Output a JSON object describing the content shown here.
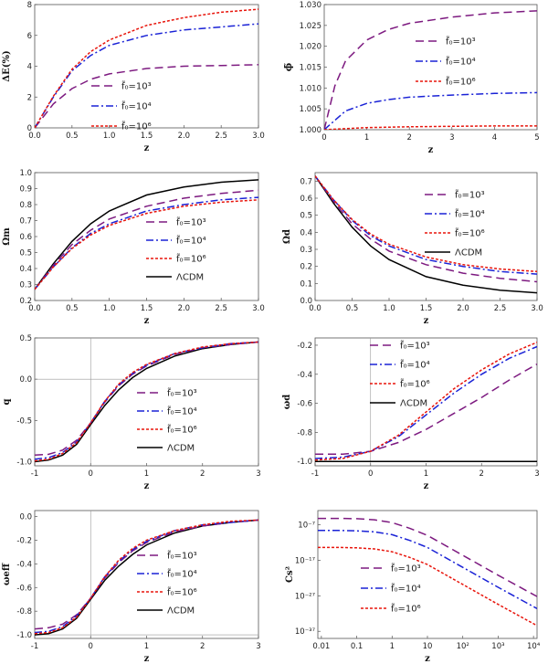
{
  "legend_styles": {
    "f3": {
      "color": "#7d1a80",
      "dash": "9,5"
    },
    "f4": {
      "color": "#1a22d6",
      "dash": "8,3,2,3"
    },
    "f6": {
      "color": "#e8150c",
      "dash": "3,2"
    },
    "lcdm": {
      "color": "#000000",
      "dash": ""
    }
  },
  "chart_data": [
    {
      "id": "p1",
      "type": "line",
      "ylabel": "ΔE(%)",
      "xlabel": "z",
      "xlim": [
        0,
        3
      ],
      "ylim": [
        0,
        8
      ],
      "xticks": [
        "0.0",
        "0.5",
        "1.0",
        "1.5",
        "2.0",
        "2.5",
        "3.0"
      ],
      "yticks": [
        "0",
        "2",
        "4",
        "6",
        "8"
      ],
      "legend": [
        {
          "key": "f3",
          "label": "f̃₀=10³"
        },
        {
          "key": "f4",
          "label": "f̃₀=10⁴"
        },
        {
          "key": "f6",
          "label": "f̃₀=10⁶"
        }
      ],
      "series": [
        {
          "key": "f3",
          "x": [
            0,
            0.25,
            0.5,
            0.75,
            1,
            1.5,
            2,
            2.5,
            3
          ],
          "y": [
            0,
            1.55,
            2.55,
            3.15,
            3.5,
            3.85,
            4.0,
            4.05,
            4.1
          ]
        },
        {
          "key": "f4",
          "x": [
            0,
            0.25,
            0.5,
            0.75,
            1,
            1.5,
            2,
            2.5,
            3
          ],
          "y": [
            0,
            2.0,
            3.7,
            4.7,
            5.35,
            6.0,
            6.35,
            6.55,
            6.75
          ]
        },
        {
          "key": "f6",
          "x": [
            0,
            0.25,
            0.5,
            0.75,
            1,
            1.5,
            2,
            2.5,
            3
          ],
          "y": [
            0,
            2.05,
            3.8,
            4.95,
            5.7,
            6.65,
            7.15,
            7.5,
            7.7
          ]
        }
      ]
    },
    {
      "id": "p2",
      "type": "line",
      "ylabel": "ϕ̃",
      "xlabel": "z",
      "xlim": [
        0,
        5
      ],
      "ylim": [
        1.0,
        1.03
      ],
      "xticks": [
        "0",
        "1",
        "2",
        "3",
        "4",
        "5"
      ],
      "yticks": [
        "1.000",
        "1.005",
        "1.010",
        "1.015",
        "1.020",
        "1.025",
        "1.030"
      ],
      "legend": [
        {
          "key": "f3",
          "label": "f̃₀=10³"
        },
        {
          "key": "f4",
          "label": "f̃₀=10⁴"
        },
        {
          "key": "f6",
          "label": "f̃₀=10⁶"
        }
      ],
      "series": [
        {
          "key": "f3",
          "x": [
            0,
            0.25,
            0.5,
            1,
            1.5,
            2,
            3,
            4,
            5
          ],
          "y": [
            1.0,
            1.0105,
            1.0165,
            1.0215,
            1.024,
            1.0255,
            1.027,
            1.028,
            1.0285
          ]
        },
        {
          "key": "f4",
          "x": [
            0,
            0.5,
            1,
            1.5,
            2,
            3,
            4,
            5
          ],
          "y": [
            1.0,
            1.0045,
            1.0063,
            1.0072,
            1.0078,
            1.0083,
            1.0087,
            1.0089
          ]
        },
        {
          "key": "f6",
          "x": [
            0,
            1,
            2,
            3,
            4,
            5
          ],
          "y": [
            1.0,
            1.0005,
            1.0007,
            1.0008,
            1.0009,
            1.0009
          ]
        }
      ]
    },
    {
      "id": "p3",
      "type": "line",
      "ylabel": "Ωm",
      "xlabel": "z",
      "xlim": [
        0,
        3
      ],
      "ylim": [
        0.2,
        1.0
      ],
      "xticks": [
        "0.0",
        "0.5",
        "1.0",
        "1.5",
        "2.0",
        "2.5",
        "3.0"
      ],
      "yticks": [
        "0.2",
        "0.3",
        "0.4",
        "0.5",
        "0.6",
        "0.7",
        "0.8",
        "0.9",
        "1.0"
      ],
      "legend": [
        {
          "key": "f3",
          "label": "f̃₀=10³"
        },
        {
          "key": "f4",
          "label": "f̃₀=10⁴"
        },
        {
          "key": "f6",
          "label": "f̃₀=10⁶"
        },
        {
          "key": "lcdm",
          "label": "ΛCDM"
        }
      ],
      "series": [
        {
          "key": "lcdm",
          "x": [
            0,
            0.25,
            0.5,
            0.75,
            1,
            1.5,
            2,
            2.5,
            3
          ],
          "y": [
            0.27,
            0.43,
            0.57,
            0.68,
            0.76,
            0.86,
            0.91,
            0.94,
            0.955
          ]
        },
        {
          "key": "f3",
          "x": [
            0,
            0.25,
            0.5,
            0.75,
            1,
            1.5,
            2,
            2.5,
            3
          ],
          "y": [
            0.27,
            0.42,
            0.55,
            0.64,
            0.71,
            0.79,
            0.84,
            0.87,
            0.89
          ]
        },
        {
          "key": "f4",
          "x": [
            0,
            0.25,
            0.5,
            0.75,
            1,
            1.5,
            2,
            2.5,
            3
          ],
          "y": [
            0.27,
            0.41,
            0.53,
            0.62,
            0.68,
            0.76,
            0.8,
            0.83,
            0.845
          ]
        },
        {
          "key": "f6",
          "x": [
            0,
            0.25,
            0.5,
            0.75,
            1,
            1.5,
            2,
            2.5,
            3
          ],
          "y": [
            0.27,
            0.41,
            0.525,
            0.61,
            0.67,
            0.745,
            0.79,
            0.815,
            0.83
          ]
        }
      ]
    },
    {
      "id": "p4",
      "type": "line",
      "ylabel": "Ωd",
      "xlabel": "z",
      "xlim": [
        0,
        3
      ],
      "ylim": [
        0.0,
        0.75
      ],
      "xticks": [
        "0.0",
        "0.5",
        "1.0",
        "1.5",
        "2.0",
        "2.5",
        "3.0"
      ],
      "yticks": [
        "0.0",
        "0.1",
        "0.2",
        "0.3",
        "0.4",
        "0.5",
        "0.6",
        "0.7"
      ],
      "legend": [
        {
          "key": "f3",
          "label": "f̃₀=10³"
        },
        {
          "key": "f4",
          "label": "f̃₀=10⁴"
        },
        {
          "key": "f6",
          "label": "f̃₀=10⁶"
        },
        {
          "key": "lcdm",
          "label": "ΛCDM"
        }
      ],
      "series": [
        {
          "key": "lcdm",
          "x": [
            0,
            0.25,
            0.5,
            0.75,
            1,
            1.5,
            2,
            2.5,
            3
          ],
          "y": [
            0.73,
            0.57,
            0.43,
            0.32,
            0.24,
            0.14,
            0.09,
            0.06,
            0.045
          ]
        },
        {
          "key": "f3",
          "x": [
            0,
            0.25,
            0.5,
            0.75,
            1,
            1.5,
            2,
            2.5,
            3
          ],
          "y": [
            0.73,
            0.58,
            0.45,
            0.36,
            0.29,
            0.21,
            0.16,
            0.13,
            0.11
          ]
        },
        {
          "key": "f4",
          "x": [
            0,
            0.25,
            0.5,
            0.75,
            1,
            1.5,
            2,
            2.5,
            3
          ],
          "y": [
            0.73,
            0.59,
            0.47,
            0.38,
            0.32,
            0.24,
            0.2,
            0.17,
            0.155
          ]
        },
        {
          "key": "f6",
          "x": [
            0,
            0.25,
            0.5,
            0.75,
            1,
            1.5,
            2,
            2.5,
            3
          ],
          "y": [
            0.73,
            0.59,
            0.475,
            0.39,
            0.33,
            0.255,
            0.21,
            0.185,
            0.17
          ]
        }
      ]
    },
    {
      "id": "p5",
      "type": "line",
      "ylabel": "q",
      "xlabel": "z",
      "xlim": [
        -1,
        3
      ],
      "ylim": [
        -1.05,
        0.5
      ],
      "xticks": [
        "-1",
        "0",
        "1",
        "2",
        "3"
      ],
      "yticks": [
        "-1.0",
        "-0.5",
        "0.0",
        "0.5"
      ],
      "refX": 0,
      "refY": 0,
      "legend": [
        {
          "key": "f3",
          "label": "f̃₀=10³"
        },
        {
          "key": "f4",
          "label": "f̃₀=10⁴"
        },
        {
          "key": "f6",
          "label": "f̃₀=10⁶"
        },
        {
          "key": "lcdm",
          "label": "ΛCDM"
        }
      ],
      "series": [
        {
          "key": "lcdm",
          "x": [
            -1,
            -0.75,
            -0.5,
            -0.25,
            0,
            0.25,
            0.5,
            0.75,
            1,
            1.5,
            2,
            2.5,
            3
          ],
          "y": [
            -1.0,
            -0.98,
            -0.92,
            -0.79,
            -0.55,
            -0.32,
            -0.13,
            0.02,
            0.13,
            0.28,
            0.37,
            0.42,
            0.45
          ]
        },
        {
          "key": "f3",
          "x": [
            -1,
            -0.75,
            -0.5,
            -0.25,
            0,
            0.25,
            0.5,
            0.75,
            1,
            1.5,
            2,
            2.5,
            3
          ],
          "y": [
            -0.92,
            -0.91,
            -0.86,
            -0.74,
            -0.53,
            -0.28,
            -0.08,
            0.06,
            0.16,
            0.3,
            0.38,
            0.42,
            0.45
          ]
        },
        {
          "key": "f4",
          "x": [
            -1,
            -0.75,
            -0.5,
            -0.25,
            0,
            0.25,
            0.5,
            0.75,
            1,
            1.5,
            2,
            2.5,
            3
          ],
          "y": [
            -0.97,
            -0.95,
            -0.89,
            -0.76,
            -0.53,
            -0.27,
            -0.07,
            0.07,
            0.17,
            0.31,
            0.38,
            0.43,
            0.45
          ]
        },
        {
          "key": "f6",
          "x": [
            -1,
            -0.75,
            -0.5,
            -0.25,
            0,
            0.25,
            0.5,
            0.75,
            1,
            1.5,
            2,
            2.5,
            3
          ],
          "y": [
            -0.99,
            -0.97,
            -0.9,
            -0.77,
            -0.53,
            -0.27,
            -0.06,
            0.08,
            0.18,
            0.31,
            0.39,
            0.43,
            0.45
          ]
        }
      ]
    },
    {
      "id": "p6",
      "type": "line",
      "ylabel": "ωd",
      "xlabel": "z",
      "xlim": [
        -1,
        3
      ],
      "ylim": [
        -1.03,
        -0.15
      ],
      "xticks": [
        "-1",
        "0",
        "1",
        "2",
        "3"
      ],
      "yticks": [
        "-1.0",
        "-0.8",
        "-0.6",
        "-0.4",
        "-0.2"
      ],
      "refX": 0,
      "refY": -1,
      "legend": [
        {
          "key": "f3",
          "label": "f̃₀=10³"
        },
        {
          "key": "f4",
          "label": "f̃₀=10⁴"
        },
        {
          "key": "f6",
          "label": "f̃₀=10⁶"
        },
        {
          "key": "lcdm",
          "label": "ΛCDM"
        }
      ],
      "series": [
        {
          "key": "lcdm",
          "x": [
            -1,
            3
          ],
          "y": [
            -1.0,
            -1.0
          ]
        },
        {
          "key": "f3",
          "x": [
            -1,
            -0.5,
            0,
            0.5,
            1,
            1.5,
            2,
            2.5,
            3
          ],
          "y": [
            -0.95,
            -0.95,
            -0.93,
            -0.87,
            -0.78,
            -0.67,
            -0.56,
            -0.44,
            -0.33
          ]
        },
        {
          "key": "f4",
          "x": [
            -1,
            -0.5,
            0,
            0.5,
            1,
            1.5,
            2,
            2.5,
            3
          ],
          "y": [
            -0.98,
            -0.97,
            -0.93,
            -0.83,
            -0.68,
            -0.53,
            -0.4,
            -0.29,
            -0.21
          ]
        },
        {
          "key": "f6",
          "x": [
            -1,
            -0.5,
            0,
            0.5,
            1,
            1.5,
            2,
            2.5,
            3
          ],
          "y": [
            -0.99,
            -0.98,
            -0.93,
            -0.82,
            -0.66,
            -0.5,
            -0.37,
            -0.26,
            -0.18
          ]
        }
      ]
    },
    {
      "id": "p7",
      "type": "line",
      "ylabel": "ωeff",
      "xlabel": "z",
      "xlim": [
        -1,
        3
      ],
      "ylim": [
        -1.03,
        0.05
      ],
      "xticks": [
        "-1",
        "0",
        "1",
        "2",
        "3"
      ],
      "yticks": [
        "-1.0",
        "-0.8",
        "-0.6",
        "-0.4",
        "-0.2",
        "0.0"
      ],
      "refX": 0,
      "refY": -1,
      "legend": [
        {
          "key": "f3",
          "label": "f̃₀=10³"
        },
        {
          "key": "f4",
          "label": "f̃₀=10⁴"
        },
        {
          "key": "f6",
          "label": "f̃₀=10⁶"
        },
        {
          "key": "lcdm",
          "label": "ΛCDM"
        }
      ],
      "series": [
        {
          "key": "lcdm",
          "x": [
            -1,
            -0.75,
            -0.5,
            -0.25,
            0,
            0.25,
            0.5,
            0.75,
            1,
            1.5,
            2,
            2.5,
            3
          ],
          "y": [
            -1.0,
            -0.99,
            -0.95,
            -0.86,
            -0.7,
            -0.54,
            -0.42,
            -0.32,
            -0.24,
            -0.14,
            -0.08,
            -0.05,
            -0.03
          ]
        },
        {
          "key": "f3",
          "x": [
            -1,
            -0.75,
            -0.5,
            -0.25,
            0,
            0.25,
            0.5,
            0.75,
            1,
            1.5,
            2,
            2.5,
            3
          ],
          "y": [
            -0.95,
            -0.94,
            -0.91,
            -0.83,
            -0.69,
            -0.52,
            -0.39,
            -0.29,
            -0.22,
            -0.13,
            -0.08,
            -0.05,
            -0.03
          ]
        },
        {
          "key": "f4",
          "x": [
            -1,
            -0.75,
            -0.5,
            -0.25,
            0,
            0.25,
            0.5,
            0.75,
            1,
            1.5,
            2,
            2.5,
            3
          ],
          "y": [
            -0.98,
            -0.97,
            -0.93,
            -0.84,
            -0.69,
            -0.51,
            -0.38,
            -0.28,
            -0.21,
            -0.12,
            -0.07,
            -0.05,
            -0.03
          ]
        },
        {
          "key": "f6",
          "x": [
            -1,
            -0.75,
            -0.5,
            -0.25,
            0,
            0.25,
            0.5,
            0.75,
            1,
            1.5,
            2,
            2.5,
            3
          ],
          "y": [
            -0.99,
            -0.98,
            -0.94,
            -0.85,
            -0.69,
            -0.51,
            -0.37,
            -0.27,
            -0.2,
            -0.12,
            -0.07,
            -0.04,
            -0.03
          ]
        }
      ]
    },
    {
      "id": "p8",
      "type": "line",
      "ylabel": "Cs²",
      "xlabel": "z",
      "xscale": "log",
      "yscale": "log",
      "xlim": [
        -2.1,
        4.1
      ],
      "ylim": [
        -39,
        -3
      ],
      "xtickvals": [
        -2,
        -1,
        0,
        1,
        2,
        3,
        4
      ],
      "xticks": [
        "0.01",
        "0.1",
        "1",
        "10",
        "10²",
        "10³",
        "10⁴"
      ],
      "ytickvals": [
        -7,
        -17,
        -27,
        -37
      ],
      "yticks": [
        "10⁻⁷",
        "10⁻¹⁷",
        "10⁻²⁷",
        "10⁻³⁷"
      ],
      "legend": [
        {
          "key": "f3",
          "label": "f̃₀=10³"
        },
        {
          "key": "f4",
          "label": "f̃₀=10⁴"
        },
        {
          "key": "f6",
          "label": "f̃₀=10⁶"
        }
      ],
      "series": [
        {
          "key": "f3",
          "x": [
            -2.1,
            -1.5,
            -1,
            -0.5,
            0,
            0.5,
            1,
            2,
            3,
            4.1
          ],
          "y": [
            -5.2,
            -5.2,
            -5.3,
            -5.6,
            -6.4,
            -8.0,
            -10,
            -15.6,
            -21.2,
            -27.2
          ]
        },
        {
          "key": "f4",
          "x": [
            -2.1,
            -1.5,
            -1,
            -0.5,
            0,
            0.5,
            1,
            2,
            3,
            4.1
          ],
          "y": [
            -8.6,
            -8.6,
            -8.7,
            -9.0,
            -9.8,
            -11.4,
            -13.4,
            -19.0,
            -24.6,
            -30.6
          ]
        },
        {
          "key": "f6",
          "x": [
            -2.1,
            -1.5,
            -1,
            -0.5,
            0,
            0.5,
            1,
            2,
            3,
            4.1
          ],
          "y": [
            -13.4,
            -13.4,
            -13.5,
            -13.8,
            -14.6,
            -16.2,
            -18.2,
            -23.8,
            -29.4,
            -35.4
          ]
        }
      ]
    }
  ]
}
